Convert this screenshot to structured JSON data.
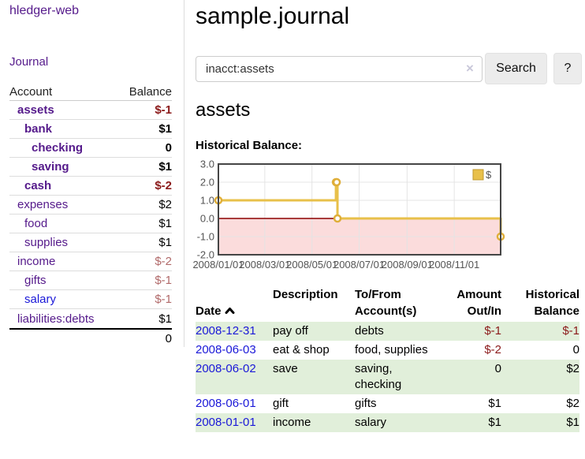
{
  "app": {
    "title": "hledger-web",
    "nav_journal": "Journal"
  },
  "colors": {
    "link_purple": "#551a8b",
    "link_blue": "#1a18d8",
    "negative_strong": "#8b1a1a",
    "negative_soft": "#b16a6a",
    "row_stripe_green": "#e1efda",
    "chart_line_gold": "#e8c04a",
    "chart_negative_region": "#fbdcdc",
    "chart_zero_line": "#8b0000"
  },
  "sidebar": {
    "header": {
      "account": "Account",
      "balance": "Balance"
    },
    "accounts": [
      {
        "name": "assets",
        "balance": "$-1"
      },
      {
        "name": "bank",
        "balance": "$1"
      },
      {
        "name": "checking",
        "balance": "0"
      },
      {
        "name": "saving",
        "balance": "$1"
      },
      {
        "name": "cash",
        "balance": "$-2"
      },
      {
        "name": "expenses",
        "balance": "$2"
      },
      {
        "name": "food",
        "balance": "$1"
      },
      {
        "name": "supplies",
        "balance": "$1"
      },
      {
        "name": "income",
        "balance": "$-2"
      },
      {
        "name": "gifts",
        "balance": "$-1"
      },
      {
        "name": "salary",
        "balance": "$-1"
      },
      {
        "name": "liabilities:debts",
        "balance": "$1"
      }
    ],
    "total": "0"
  },
  "main": {
    "title": "sample.journal",
    "search": {
      "value": "inacct:assets",
      "clear_icon": "×",
      "button_label": "Search",
      "help_label": "?"
    },
    "account_heading": "assets",
    "chart_label": "Historical Balance:"
  },
  "chart_data": {
    "type": "line",
    "step": true,
    "title": "Historical Balance:",
    "series": [
      {
        "name": "$",
        "color": "#e8c04a",
        "point_color": "#dfae39",
        "points": [
          [
            "2008-01-01",
            1
          ],
          [
            "2008-06-01",
            2
          ],
          [
            "2008-06-02",
            2
          ],
          [
            "2008-06-03",
            0
          ],
          [
            "2008-12-31",
            -1
          ]
        ]
      }
    ],
    "xlim": [
      "2008-01-01",
      "2008-12-31"
    ],
    "ylim": [
      -2,
      3
    ],
    "y_ticks": [
      3.0,
      2.0,
      1.0,
      0.0,
      -1.0,
      -2.0
    ],
    "x_ticks": [
      "2008/01/01",
      "2008/03/01",
      "2008/05/01",
      "2008/07/01",
      "2008/09/01",
      "2008/11/01"
    ],
    "legend": {
      "label": "$",
      "position": "top-right"
    },
    "grid": true,
    "grid_color": "#e4e4e4",
    "border_color": "#454545",
    "negative_region_color": "#fbdcdc",
    "zero_line_color": "#8b0000"
  },
  "register": {
    "headers": {
      "date": "Date",
      "description": "Description",
      "to_from": "To/From\nAccount(s)",
      "amount": "Amount\nOut/In",
      "balance": "Historical\nBalance"
    },
    "rows": [
      {
        "date": "2008-12-31",
        "description": "pay off",
        "to_from": "debts",
        "amount": "$-1",
        "balance": "$-1"
      },
      {
        "date": "2008-06-03",
        "description": "eat & shop",
        "to_from": "food, supplies",
        "amount": "$-2",
        "balance": "0"
      },
      {
        "date": "2008-06-02",
        "description": "save",
        "to_from": "saving,\nchecking",
        "amount": "0",
        "balance": "$2"
      },
      {
        "date": "2008-06-01",
        "description": "gift",
        "to_from": "gifts",
        "amount": "$1",
        "balance": "$2"
      },
      {
        "date": "2008-01-01",
        "description": "income",
        "to_from": "salary",
        "amount": "$1",
        "balance": "$1"
      }
    ]
  }
}
